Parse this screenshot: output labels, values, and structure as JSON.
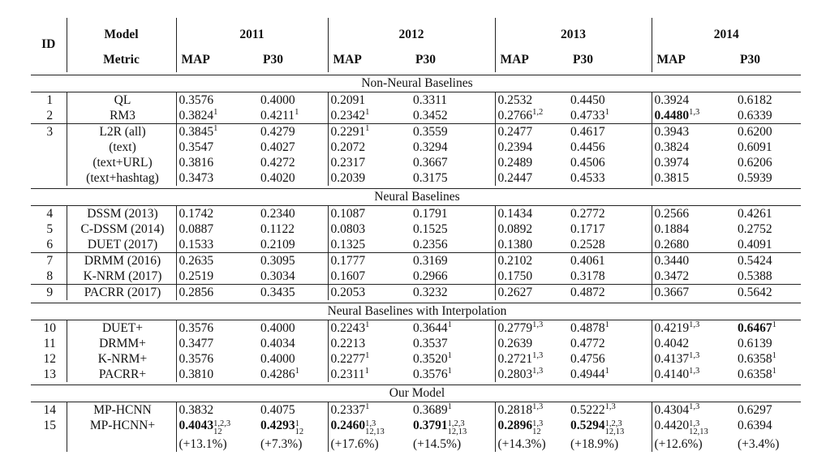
{
  "header": {
    "id_label": "ID",
    "model_label": "Model",
    "metric_label": "Metric",
    "years": [
      "2011",
      "2012",
      "2013",
      "2014"
    ],
    "metrics": [
      "MAP",
      "P30",
      "MAP",
      "P30",
      "MAP",
      "P30",
      "MAP",
      "P30"
    ]
  },
  "sections": [
    {
      "title": "Non-Neural Baselines",
      "groups": [
        [
          {
            "id": "1",
            "model": "QL",
            "cells": [
              {
                "v": "0.3576"
              },
              {
                "v": "0.4000"
              },
              {
                "v": "0.2091"
              },
              {
                "v": "0.3311"
              },
              {
                "v": "0.2532"
              },
              {
                "v": "0.4450"
              },
              {
                "v": "0.3924"
              },
              {
                "v": "0.6182"
              }
            ]
          },
          {
            "id": "2",
            "model": "RM3",
            "cells": [
              {
                "v": "0.3824",
                "sup": "1"
              },
              {
                "v": "0.4211",
                "sup": "1"
              },
              {
                "v": "0.2342",
                "sup": "1"
              },
              {
                "v": "0.3452"
              },
              {
                "v": "0.2766",
                "sup": "1,2"
              },
              {
                "v": "0.4733",
                "sup": "1"
              },
              {
                "v": "0.4480",
                "sup": "1,3",
                "bold": true
              },
              {
                "v": "0.6339"
              }
            ]
          }
        ],
        [
          {
            "id": "3",
            "model": "L2R (all)",
            "cells": [
              {
                "v": "0.3845",
                "sup": "1"
              },
              {
                "v": "0.4279"
              },
              {
                "v": "0.2291",
                "sup": "1"
              },
              {
                "v": "0.3559"
              },
              {
                "v": "0.2477"
              },
              {
                "v": "0.4617"
              },
              {
                "v": "0.3943"
              },
              {
                "v": "0.6200"
              }
            ]
          },
          {
            "id": "",
            "model": "(text)",
            "cells": [
              {
                "v": "0.3547"
              },
              {
                "v": "0.4027"
              },
              {
                "v": "0.2072"
              },
              {
                "v": "0.3294"
              },
              {
                "v": "0.2394"
              },
              {
                "v": "0.4456"
              },
              {
                "v": "0.3824"
              },
              {
                "v": "0.6091"
              }
            ]
          },
          {
            "id": "",
            "model": "(text+URL)",
            "cells": [
              {
                "v": "0.3816"
              },
              {
                "v": "0.4272"
              },
              {
                "v": "0.2317"
              },
              {
                "v": "0.3667"
              },
              {
                "v": "0.2489"
              },
              {
                "v": "0.4506"
              },
              {
                "v": "0.3974"
              },
              {
                "v": "0.6206"
              }
            ]
          },
          {
            "id": "",
            "model": "(text+hashtag)",
            "cells": [
              {
                "v": "0.3473"
              },
              {
                "v": "0.4020"
              },
              {
                "v": "0.2039"
              },
              {
                "v": "0.3175"
              },
              {
                "v": "0.2447"
              },
              {
                "v": "0.4533"
              },
              {
                "v": "0.3815"
              },
              {
                "v": "0.5939"
              }
            ]
          }
        ]
      ]
    },
    {
      "title": "Neural Baselines",
      "groups": [
        [
          {
            "id": "4",
            "model": "DSSM (2013)",
            "cells": [
              {
                "v": "0.1742"
              },
              {
                "v": "0.2340"
              },
              {
                "v": "0.1087"
              },
              {
                "v": "0.1791"
              },
              {
                "v": "0.1434"
              },
              {
                "v": "0.2772"
              },
              {
                "v": "0.2566"
              },
              {
                "v": "0.4261"
              }
            ]
          },
          {
            "id": "5",
            "model": "C-DSSM (2014)",
            "cells": [
              {
                "v": "0.0887"
              },
              {
                "v": "0.1122"
              },
              {
                "v": "0.0803"
              },
              {
                "v": "0.1525"
              },
              {
                "v": "0.0892"
              },
              {
                "v": "0.1717"
              },
              {
                "v": "0.1884"
              },
              {
                "v": "0.2752"
              }
            ]
          },
          {
            "id": "6",
            "model": "DUET (2017)",
            "cells": [
              {
                "v": "0.1533"
              },
              {
                "v": "0.2109"
              },
              {
                "v": "0.1325"
              },
              {
                "v": "0.2356"
              },
              {
                "v": "0.1380"
              },
              {
                "v": "0.2528"
              },
              {
                "v": "0.2680"
              },
              {
                "v": "0.4091"
              }
            ]
          }
        ],
        [
          {
            "id": "7",
            "model": "DRMM (2016)",
            "cells": [
              {
                "v": "0.2635"
              },
              {
                "v": "0.3095"
              },
              {
                "v": "0.1777"
              },
              {
                "v": "0.3169"
              },
              {
                "v": "0.2102"
              },
              {
                "v": "0.4061"
              },
              {
                "v": "0.3440"
              },
              {
                "v": "0.5424"
              }
            ]
          },
          {
            "id": "8",
            "model": "K-NRM (2017)",
            "cells": [
              {
                "v": "0.2519"
              },
              {
                "v": "0.3034"
              },
              {
                "v": "0.1607"
              },
              {
                "v": "0.2966"
              },
              {
                "v": "0.1750"
              },
              {
                "v": "0.3178"
              },
              {
                "v": "0.3472"
              },
              {
                "v": "0.5388"
              }
            ]
          }
        ],
        [
          {
            "id": "9",
            "model": "PACRR (2017)",
            "cells": [
              {
                "v": "0.2856"
              },
              {
                "v": "0.3435"
              },
              {
                "v": "0.2053"
              },
              {
                "v": "0.3232"
              },
              {
                "v": "0.2627"
              },
              {
                "v": "0.4872"
              },
              {
                "v": "0.3667"
              },
              {
                "v": "0.5642"
              }
            ]
          }
        ]
      ]
    },
    {
      "title": "Neural Baselines with Interpolation",
      "groups": [
        [
          {
            "id": "10",
            "model": "DUET+",
            "cells": [
              {
                "v": "0.3576"
              },
              {
                "v": "0.4000"
              },
              {
                "v": "0.2243",
                "sup": "1"
              },
              {
                "v": "0.3644",
                "sup": "1"
              },
              {
                "v": "0.2779",
                "sup": "1,3"
              },
              {
                "v": "0.4878",
                "sup": "1"
              },
              {
                "v": "0.4219",
                "sup": "1,3"
              },
              {
                "v": "0.6467",
                "sup": "1",
                "bold": true
              }
            ]
          },
          {
            "id": "11",
            "model": "DRMM+",
            "cells": [
              {
                "v": "0.3477"
              },
              {
                "v": "0.4034"
              },
              {
                "v": "0.2213"
              },
              {
                "v": "0.3537"
              },
              {
                "v": "0.2639"
              },
              {
                "v": "0.4772"
              },
              {
                "v": "0.4042"
              },
              {
                "v": "0.6139"
              }
            ]
          },
          {
            "id": "12",
            "model": "K-NRM+",
            "cells": [
              {
                "v": "0.3576"
              },
              {
                "v": "0.4000"
              },
              {
                "v": "0.2277",
                "sup": "1"
              },
              {
                "v": "0.3520",
                "sup": "1"
              },
              {
                "v": "0.2721",
                "sup": "1,3"
              },
              {
                "v": "0.4756"
              },
              {
                "v": "0.4137",
                "sup": "1,3"
              },
              {
                "v": "0.6358",
                "sup": "1"
              }
            ]
          },
          {
            "id": "13",
            "model": "PACRR+",
            "cells": [
              {
                "v": "0.3810"
              },
              {
                "v": "0.4286",
                "sup": "1"
              },
              {
                "v": "0.2311",
                "sup": "1"
              },
              {
                "v": "0.3576",
                "sup": "1"
              },
              {
                "v": "0.2803",
                "sup": "1,3"
              },
              {
                "v": "0.4944",
                "sup": "1"
              },
              {
                "v": "0.4140",
                "sup": "1,3"
              },
              {
                "v": "0.6358",
                "sup": "1"
              }
            ]
          }
        ]
      ]
    },
    {
      "title": "Our Model",
      "groups": [
        [
          {
            "id": "14",
            "model": "MP-HCNN",
            "cells": [
              {
                "v": "0.3832"
              },
              {
                "v": "0.4075"
              },
              {
                "v": "0.2337",
                "sup": "1"
              },
              {
                "v": "0.3689",
                "sup": "1"
              },
              {
                "v": "0.2818",
                "sup": "1,3"
              },
              {
                "v": "0.5222",
                "sup": "1,3"
              },
              {
                "v": "0.4304",
                "sup": "1,3"
              },
              {
                "v": "0.6297"
              }
            ]
          },
          {
            "id": "15",
            "model": "MP-HCNN+",
            "cells": [
              {
                "v": "0.4043",
                "sup": "1,2,3",
                "sub": "12",
                "bold": true
              },
              {
                "v": "0.4293",
                "sup": "1",
                "sub": "12",
                "bold": true
              },
              {
                "v": "0.2460",
                "sup": "1,3",
                "sub": "12,13",
                "bold": true
              },
              {
                "v": "0.3791",
                "sup": "1,2,3",
                "sub": "12,13",
                "bold": true
              },
              {
                "v": "0.2896",
                "sup": "1,3",
                "sub": "12",
                "bold": true
              },
              {
                "v": "0.5294",
                "sup": "1,2,3",
                "sub": "12,13",
                "bold": true
              },
              {
                "v": "0.4420",
                "sup": "1,3",
                "sub": "12,13"
              },
              {
                "v": "0.6394"
              }
            ]
          },
          {
            "id": "",
            "model": "",
            "cells": [
              {
                "v": "(+13.1%)"
              },
              {
                "v": "(+7.3%)"
              },
              {
                "v": "(+17.6%)"
              },
              {
                "v": "(+14.5%)"
              },
              {
                "v": "(+14.3%)"
              },
              {
                "v": "(+18.9%)"
              },
              {
                "v": "(+12.6%)"
              },
              {
                "v": "(+3.4%)"
              }
            ]
          }
        ]
      ]
    }
  ]
}
